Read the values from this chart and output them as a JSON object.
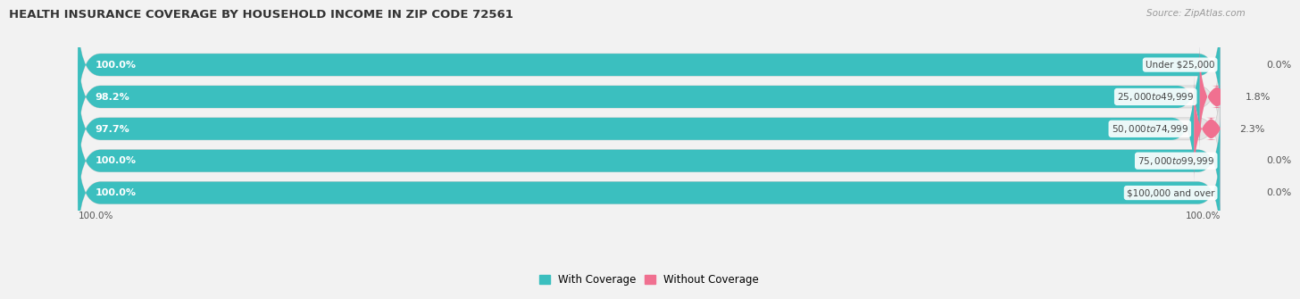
{
  "title": "HEALTH INSURANCE COVERAGE BY HOUSEHOLD INCOME IN ZIP CODE 72561",
  "source": "Source: ZipAtlas.com",
  "categories": [
    "Under $25,000",
    "$25,000 to $49,999",
    "$50,000 to $74,999",
    "$75,000 to $99,999",
    "$100,000 and over"
  ],
  "with_coverage": [
    100.0,
    98.2,
    97.7,
    100.0,
    100.0
  ],
  "without_coverage": [
    0.0,
    1.8,
    2.3,
    0.0,
    0.0
  ],
  "color_with": "#3bbfbf",
  "color_without": "#f07090",
  "color_without_light": "#f5b8cc",
  "bg_color": "#f2f2f2",
  "bar_bg_color": "#e4e4e4",
  "bar_height": 0.68,
  "title_fontsize": 9.5,
  "label_fontsize": 8.0,
  "legend_fontsize": 8.5,
  "source_fontsize": 7.5,
  "axis_label_fontsize": 7.5
}
